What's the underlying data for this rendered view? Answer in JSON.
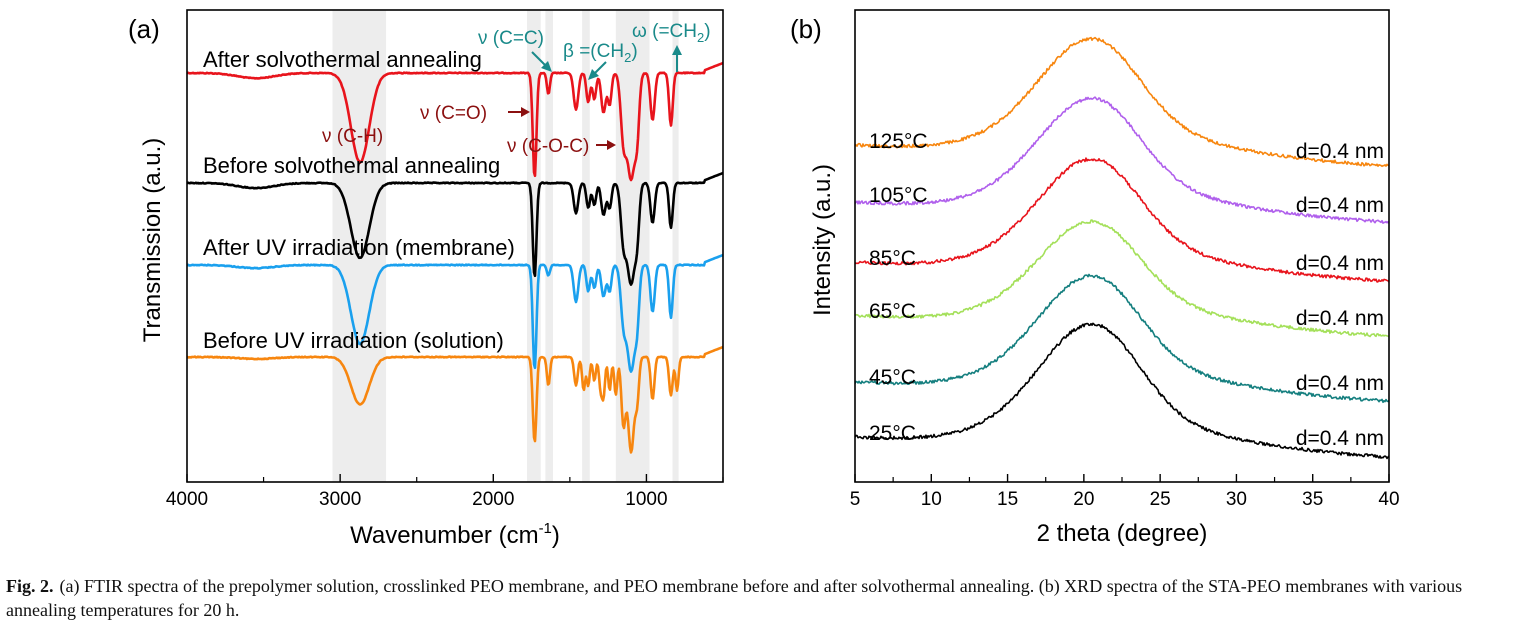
{
  "figure": {
    "caption_label": "Fig. 2.",
    "caption_text": "(a) FTIR spectra of the prepolymer solution, crosslinked PEO membrane, and PEO membrane before and after solvothermal annealing. (b) XRD spectra of the STA-PEO membranes with various annealing temperatures for 20 h."
  },
  "colors": {
    "red": "#e8141c",
    "black": "#000000",
    "blue": "#1aa0ee",
    "orange": "#f7860f",
    "purple": "#b060ec",
    "light_green": "#a4e05a",
    "teal": "#157f7f",
    "annotation_teal": "#1a8a8a",
    "annotation_darkred": "#8b1010",
    "band_gray": "#ededed"
  },
  "chart_data": [
    {
      "panel": "(a)",
      "type": "line",
      "xlabel": "Wavenumber (cm",
      "xlabel_sup": "-1",
      "xlabel_close": ")",
      "ylabel": "Transmission (a.u.)",
      "xlim": [
        4000,
        500
      ],
      "xticks": [
        "4000",
        "3000",
        "2000",
        "1000"
      ],
      "shaded_bands": [
        [
          3050,
          2700
        ],
        [
          1780,
          1690
        ],
        [
          1660,
          1610
        ],
        [
          1420,
          1370
        ],
        [
          1200,
          980
        ],
        [
          830,
          790
        ]
      ],
      "series": [
        {
          "name": "After solvothermal annealing",
          "color_key": "red",
          "peaks": [
            [
              3550,
              0.05,
              120
            ],
            [
              2870,
              0.85,
              60
            ],
            [
              1730,
              1.0,
              12
            ],
            [
              1640,
              0.2,
              10
            ],
            [
              1460,
              0.35,
              15
            ],
            [
              1380,
              0.28,
              12
            ],
            [
              1340,
              0.25,
              12
            ],
            [
              1280,
              0.38,
              15
            ],
            [
              1240,
              0.3,
              12
            ],
            [
              1150,
              0.6,
              18
            ],
            [
              1100,
              1.0,
              25
            ],
            [
              1060,
              0.45,
              14
            ],
            [
              960,
              0.45,
              14
            ],
            [
              840,
              0.5,
              12
            ]
          ],
          "depth": 105
        },
        {
          "name": "Before solvothermal annealing",
          "color_key": "black",
          "peaks": [
            [
              3550,
              0.05,
              120
            ],
            [
              2870,
              0.75,
              60
            ],
            [
              1730,
              0.95,
              12
            ],
            [
              1460,
              0.3,
              15
            ],
            [
              1380,
              0.25,
              12
            ],
            [
              1340,
              0.22,
              12
            ],
            [
              1280,
              0.32,
              15
            ],
            [
              1240,
              0.25,
              12
            ],
            [
              1150,
              0.55,
              18
            ],
            [
              1100,
              1.0,
              25
            ],
            [
              1060,
              0.4,
              14
            ],
            [
              960,
              0.4,
              14
            ],
            [
              840,
              0.45,
              12
            ]
          ],
          "depth": 100
        },
        {
          "name": "After UV irradiation (membrane)",
          "color_key": "blue",
          "peaks": [
            [
              3550,
              0.03,
              120
            ],
            [
              2870,
              0.75,
              60
            ],
            [
              1730,
              1.0,
              12
            ],
            [
              1640,
              0.1,
              10
            ],
            [
              1460,
              0.35,
              15
            ],
            [
              1380,
              0.25,
              12
            ],
            [
              1340,
              0.22,
              12
            ],
            [
              1280,
              0.3,
              15
            ],
            [
              1240,
              0.25,
              12
            ],
            [
              1150,
              0.5,
              18
            ],
            [
              1100,
              1.0,
              25
            ],
            [
              1060,
              0.4,
              14
            ],
            [
              960,
              0.45,
              14
            ],
            [
              840,
              0.5,
              12
            ]
          ],
          "depth": 105
        },
        {
          "name": "Before UV irradiation (solution)",
          "color_key": "orange",
          "peaks": [
            [
              3550,
              0.02,
              120
            ],
            [
              2870,
              0.5,
              60
            ],
            [
              1730,
              0.9,
              12
            ],
            [
              1640,
              0.3,
              10
            ],
            [
              1460,
              0.3,
              12
            ],
            [
              1410,
              0.35,
              10
            ],
            [
              1380,
              0.3,
              10
            ],
            [
              1340,
              0.25,
              10
            ],
            [
              1300,
              0.32,
              10
            ],
            [
              1280,
              0.4,
              10
            ],
            [
              1240,
              0.35,
              10
            ],
            [
              1200,
              0.4,
              10
            ],
            [
              1150,
              0.7,
              14
            ],
            [
              1100,
              1.0,
              20
            ],
            [
              1060,
              0.4,
              12
            ],
            [
              960,
              0.45,
              12
            ],
            [
              840,
              0.4,
              12
            ],
            [
              800,
              0.35,
              10
            ]
          ],
          "depth": 95
        }
      ],
      "annotations": [
        {
          "text": "ν (C-H)",
          "color_key": "annotation_darkred"
        },
        {
          "text": "ν (C=O)",
          "color_key": "annotation_darkred"
        },
        {
          "text": "ν (C-O-C)",
          "color_key": "annotation_darkred"
        },
        {
          "text": "ν (C=C)",
          "color_key": "annotation_teal"
        },
        {
          "text": "β =(CH",
          "sub": "2",
          "close": ")",
          "color_key": "annotation_teal"
        },
        {
          "text": "ω (=CH",
          "sub": "2",
          "close": ")",
          "color_key": "annotation_teal"
        }
      ]
    },
    {
      "panel": "(b)",
      "type": "line",
      "xlabel": "2 theta (degree)",
      "ylabel": "Intensity (a.u.)",
      "xlim": [
        5,
        40
      ],
      "xticks": [
        5,
        10,
        15,
        20,
        25,
        30,
        35,
        40
      ],
      "series": [
        {
          "name": "125°C",
          "annotation": "d=0.4 nm",
          "color_key": "orange",
          "baseline": 0.0,
          "peak": 1.0
        },
        {
          "name": "105°C",
          "annotation": "d=0.4 nm",
          "color_key": "purple",
          "baseline": 0.0,
          "peak": 1.0
        },
        {
          "name": "85°C",
          "annotation": "d=0.4 nm",
          "color_key": "red",
          "baseline": 0.0,
          "peak": 1.0
        },
        {
          "name": "65°C",
          "annotation": "d=0.4 nm",
          "color_key": "light_green",
          "baseline": 0.0,
          "peak": 1.0
        },
        {
          "name": "45°C",
          "annotation": "d=0.4 nm",
          "color_key": "teal",
          "baseline": 0.0,
          "peak": 1.0
        },
        {
          "name": "25°C",
          "annotation": "d=0.4 nm",
          "color_key": "black",
          "baseline": 0.0,
          "peak": 1.0
        }
      ]
    }
  ]
}
